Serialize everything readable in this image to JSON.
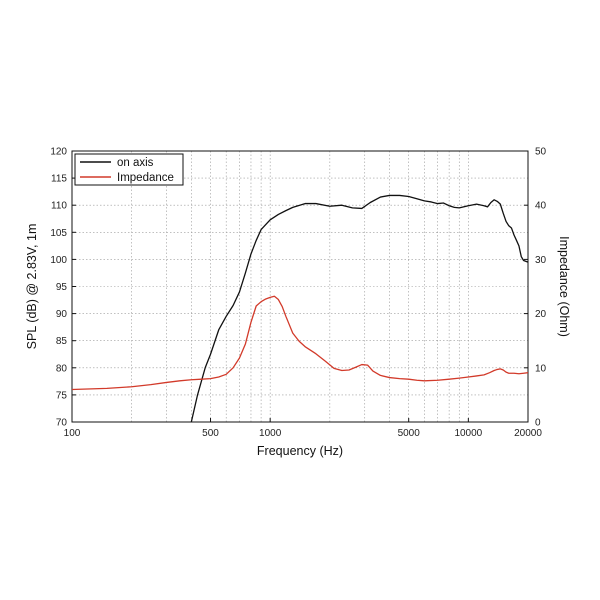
{
  "chart_data": {
    "type": "line",
    "xscale": "log",
    "xlabel": "Frequency (Hz)",
    "ylabel": "SPL (dB) @ 2.83V, 1m",
    "y2label": "Impedance (Ohm)",
    "xlim": [
      100,
      20000
    ],
    "ylim": [
      70,
      120
    ],
    "y2lim": [
      0,
      50
    ],
    "grid": true,
    "legend_position": "top-left",
    "x_tick_labels": [
      {
        "value": 100,
        "label": "100"
      },
      {
        "value": 500,
        "label": "500"
      },
      {
        "value": 1000,
        "label": "1000"
      },
      {
        "value": 5000,
        "label": "5000"
      },
      {
        "value": 10000,
        "label": "10000"
      },
      {
        "value": 20000,
        "label": "20000"
      }
    ],
    "y_ticks": [
      70,
      75,
      80,
      85,
      90,
      95,
      100,
      105,
      110,
      115,
      120
    ],
    "y2_ticks": [
      0,
      10,
      20,
      30,
      40,
      50
    ],
    "series": [
      {
        "name": "on axis",
        "color": "#111111",
        "axis": "left",
        "x": [
          400,
          430,
          470,
          500,
          550,
          600,
          650,
          700,
          750,
          800,
          850,
          900,
          1000,
          1100,
          1200,
          1300,
          1500,
          1700,
          2000,
          2300,
          2600,
          2900,
          3200,
          3600,
          4000,
          4500,
          5000,
          5500,
          6000,
          6500,
          7000,
          7500,
          8000,
          8500,
          9000,
          10000,
          11000,
          12000,
          12500,
          13000,
          13500,
          14000,
          14500,
          15000,
          15500,
          16000,
          16500,
          17000,
          17500,
          18000,
          18500,
          19000,
          20000
        ],
        "y": [
          70,
          75,
          80,
          82.5,
          87,
          89.5,
          91.5,
          94,
          97.5,
          101,
          103.5,
          105.5,
          107.3,
          108.3,
          109,
          109.6,
          110.3,
          110.3,
          109.8,
          110,
          109.5,
          109.4,
          110.5,
          111.5,
          111.8,
          111.8,
          111.6,
          111.2,
          110.8,
          110.6,
          110.3,
          110.4,
          109.9,
          109.6,
          109.5,
          109.9,
          110.2,
          109.9,
          109.7,
          110.5,
          111,
          110.7,
          110.2,
          108.5,
          107,
          106.2,
          105.8,
          104.5,
          103.5,
          102.5,
          100.5,
          99.8,
          99.5
        ]
      },
      {
        "name": "Impedance",
        "color": "#d23a2a",
        "axis": "right",
        "x": [
          100,
          150,
          200,
          250,
          300,
          350,
          400,
          450,
          500,
          550,
          600,
          650,
          700,
          750,
          800,
          850,
          900,
          950,
          1000,
          1050,
          1100,
          1150,
          1200,
          1300,
          1400,
          1500,
          1700,
          1900,
          2100,
          2300,
          2500,
          2700,
          2900,
          3100,
          3300,
          3600,
          4000,
          4500,
          5000,
          5500,
          6000,
          7000,
          8000,
          9000,
          10000,
          11000,
          12000,
          12800,
          13500,
          14000,
          14500,
          15000,
          15500,
          16000,
          17000,
          18000,
          19000,
          20000
        ],
        "y": [
          6,
          6.2,
          6.5,
          6.9,
          7.3,
          7.6,
          7.8,
          7.9,
          8,
          8.3,
          8.8,
          10,
          11.8,
          14.4,
          18.4,
          21.4,
          22.2,
          22.7,
          23,
          23.2,
          22.6,
          21.3,
          19.5,
          16.4,
          14.9,
          13.9,
          12.6,
          11.2,
          9.9,
          9.5,
          9.6,
          10.1,
          10.6,
          10.5,
          9.4,
          8.6,
          8.2,
          8,
          7.9,
          7.7,
          7.6,
          7.7,
          7.9,
          8.1,
          8.3,
          8.5,
          8.7,
          9.1,
          9.5,
          9.7,
          9.8,
          9.6,
          9.2,
          9,
          9,
          8.9,
          9,
          9.1
        ]
      }
    ]
  }
}
